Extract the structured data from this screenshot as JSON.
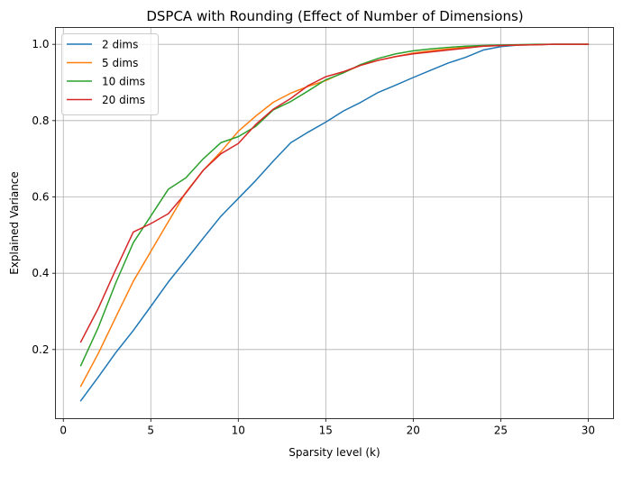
{
  "chart_data": {
    "type": "line",
    "title": "DSPCA with Rounding (Effect of Number of Dimensions)",
    "xlabel": "Sparsity level (k)",
    "ylabel": "Explained Variance",
    "xlim": [
      -0.45,
      31.45
    ],
    "ylim": [
      0.0189,
      1.0441
    ],
    "xticks": [
      0,
      5,
      10,
      15,
      20,
      25,
      30
    ],
    "yticks": [
      0.2,
      0.4,
      0.6,
      0.8,
      1.0
    ],
    "xtick_labels": [
      "0",
      "5",
      "10",
      "15",
      "20",
      "25",
      "30"
    ],
    "ytick_labels": [
      "0.2",
      "0.4",
      "0.6",
      "0.8",
      "1.0"
    ],
    "grid": true,
    "legend_position": "upper-left",
    "x": [
      1,
      2,
      3,
      4,
      5,
      6,
      7,
      8,
      9,
      10,
      11,
      12,
      13,
      14,
      15,
      16,
      17,
      18,
      19,
      20,
      21,
      22,
      23,
      24,
      25,
      26,
      27,
      28,
      29,
      30
    ],
    "series": [
      {
        "name": "2 dims",
        "color": "#1f77b4",
        "values": [
          0.066,
          0.128,
          0.192,
          0.25,
          0.313,
          0.377,
          0.434,
          0.492,
          0.549,
          0.596,
          0.643,
          0.694,
          0.742,
          0.77,
          0.796,
          0.825,
          0.848,
          0.874,
          0.893,
          0.913,
          0.932,
          0.951,
          0.966,
          0.985,
          0.994,
          0.998,
          0.999,
          1.0,
          1.0,
          1.0
        ]
      },
      {
        "name": "5 dims",
        "color": "#ff7f0e",
        "values": [
          0.104,
          0.19,
          0.285,
          0.379,
          0.457,
          0.535,
          0.612,
          0.67,
          0.718,
          0.772,
          0.812,
          0.848,
          0.872,
          0.89,
          0.905,
          0.926,
          0.945,
          0.958,
          0.968,
          0.977,
          0.983,
          0.988,
          0.992,
          0.995,
          0.997,
          0.998,
          0.999,
          1.0,
          1.0,
          1.0
        ]
      },
      {
        "name": "10 dims",
        "color": "#2ca02c",
        "values": [
          0.158,
          0.258,
          0.375,
          0.48,
          0.55,
          0.62,
          0.65,
          0.7,
          0.742,
          0.758,
          0.785,
          0.828,
          0.85,
          0.878,
          0.907,
          0.925,
          0.947,
          0.963,
          0.975,
          0.983,
          0.988,
          0.992,
          0.995,
          0.997,
          0.998,
          0.999,
          1.0,
          1.0,
          1.0,
          1.0
        ]
      },
      {
        "name": "20 dims",
        "color": "#d62728",
        "values": [
          0.22,
          0.308,
          0.41,
          0.508,
          0.53,
          0.556,
          0.61,
          0.67,
          0.713,
          0.74,
          0.79,
          0.83,
          0.858,
          0.892,
          0.915,
          0.928,
          0.945,
          0.958,
          0.968,
          0.975,
          0.98,
          0.985,
          0.99,
          0.995,
          0.997,
          0.998,
          0.999,
          1.0,
          1.0,
          1.0
        ]
      }
    ]
  }
}
